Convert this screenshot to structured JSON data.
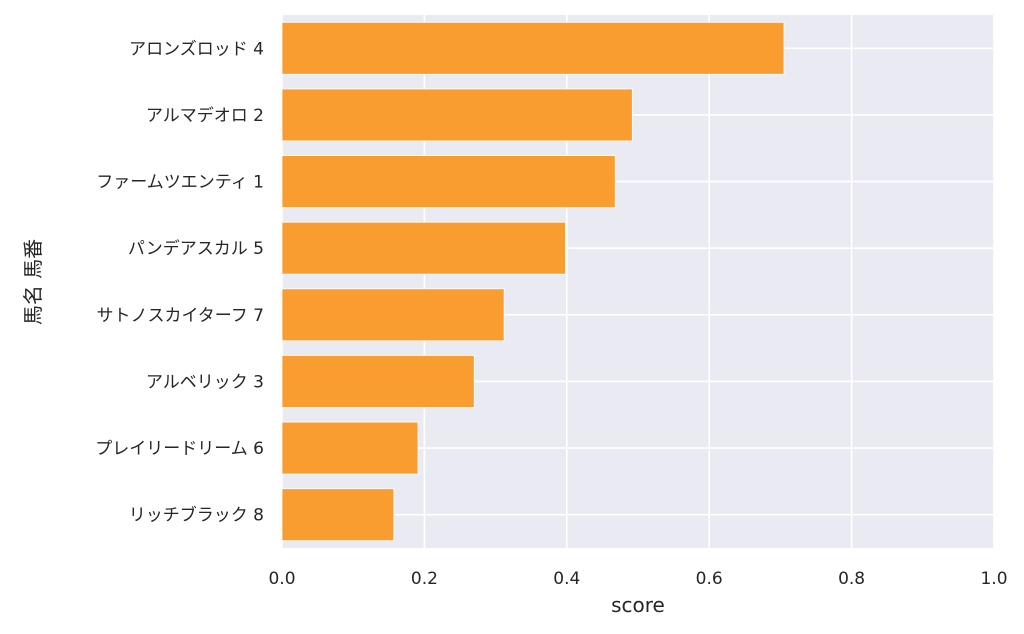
{
  "chart_data": {
    "type": "bar",
    "orientation": "horizontal",
    "categories": [
      "アロンズロッド 4",
      "アルマデオロ 2",
      "ファームツエンティ 1",
      "パンデアスカル 5",
      "サトノスカイターフ 7",
      "アルベリック 3",
      "プレイリードリーム 6",
      "リッチブラック 8"
    ],
    "values": [
      0.705,
      0.492,
      0.468,
      0.398,
      0.312,
      0.27,
      0.191,
      0.157
    ],
    "xlabel": "score",
    "ylabel": "馬名 馬番",
    "xlim": [
      0,
      1.0
    ],
    "xticks": [
      "0.0",
      "0.2",
      "0.4",
      "0.6",
      "0.8",
      "1.0"
    ],
    "grid": true,
    "bar_color": "#f99d31",
    "background_color": "#eaeaf2",
    "grid_color": "#ffffff"
  }
}
